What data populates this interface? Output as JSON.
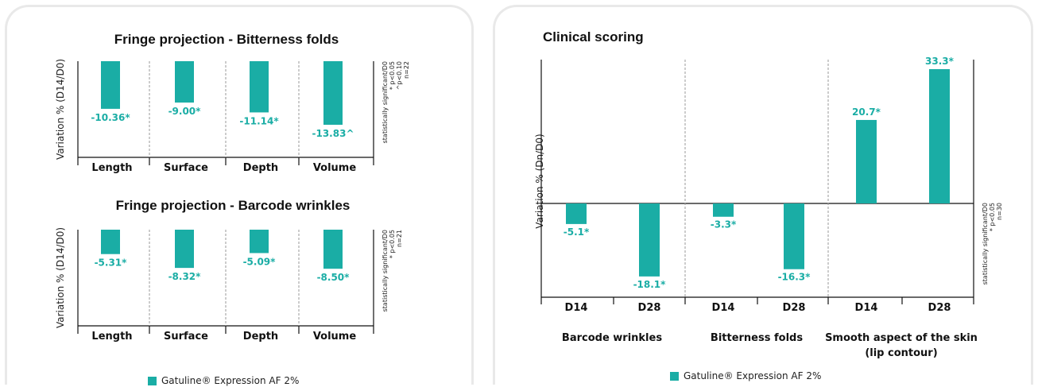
{
  "colors": {
    "bar": "#1aada5",
    "label": "#1aada5",
    "axis": "#111111",
    "divider": "#9a9a9a"
  },
  "legend": {
    "label": "Gatuline® Expression AF 2%"
  },
  "chart_data": [
    {
      "type": "bar",
      "title": "Fringe projection - Bitterness folds",
      "ylabel": "Variation % (D14/D0)",
      "categories": [
        "Length",
        "Surface",
        "Depth",
        "Volume"
      ],
      "series": [
        {
          "name": "Gatuline® Expression AF 2%",
          "values": [
            -10.36,
            -9.0,
            -11.14,
            -13.83
          ]
        }
      ],
      "data_labels": [
        "-10.36*",
        "-9.00*",
        "-11.14*",
        "-13.83^"
      ],
      "note": [
        "statistically significant/D0",
        "* p<0.05",
        "^p<0.10",
        "n=22"
      ],
      "ylim": [
        -16,
        0
      ]
    },
    {
      "type": "bar",
      "title": "Fringe projection - Barcode wrinkles",
      "ylabel": "Variation % (D14/D0)",
      "categories": [
        "Length",
        "Surface",
        "Depth",
        "Volume"
      ],
      "series": [
        {
          "name": "Gatuline® Expression AF 2%",
          "values": [
            -5.31,
            -8.32,
            -5.09,
            -8.5
          ]
        }
      ],
      "data_labels": [
        "-5.31*",
        "-8.32*",
        "-5.09*",
        "-8.50*"
      ],
      "note": [
        "statistically significant/D0",
        "* p<0.05",
        "n=21"
      ],
      "ylim": [
        -16,
        0
      ]
    },
    {
      "type": "bar",
      "title": "Clinical scoring",
      "ylabel": "Variation % (Dn/D0)",
      "categories": [
        "D14",
        "D28",
        "D14",
        "D28",
        "D14",
        "D28"
      ],
      "groups": [
        "Barcode wrinkles",
        "Bitterness folds",
        "Smooth aspect of the skin (lip contour)"
      ],
      "group_lines": [
        [
          "Barcode wrinkles"
        ],
        [
          "Bitterness folds"
        ],
        [
          "Smooth aspect of the skin",
          "(lip contour)"
        ]
      ],
      "series": [
        {
          "name": "Gatuline® Expression AF 2%",
          "values": [
            -5.1,
            -18.1,
            -3.3,
            -16.3,
            20.7,
            33.3
          ]
        }
      ],
      "data_labels": [
        "-5.1*",
        "-18.1*",
        "-3.3*",
        "-16.3*",
        "20.7*",
        "33.3*"
      ],
      "note": [
        "statistically significant/D0",
        "* p<0.05",
        "n=30"
      ],
      "ylim": [
        -25,
        35
      ]
    }
  ]
}
